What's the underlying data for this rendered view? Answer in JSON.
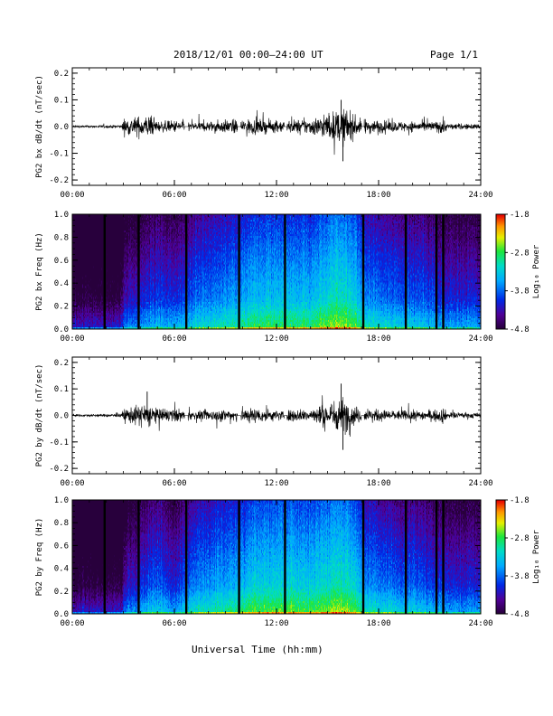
{
  "header": {
    "title": "2018/12/01  00:00–24:00 UT",
    "page": "Page 1/1"
  },
  "footer": {
    "xlabel": "Universal Time (hh:mm)"
  },
  "chart_data": [
    {
      "type": "line",
      "panel": "PG2 bx waveform",
      "ylabel": "PG2 bx dB/dt (nT/sec)",
      "xlim": [
        0,
        24
      ],
      "ylim": [
        -0.22,
        0.22
      ],
      "x_ticks": [
        "00:00",
        "06:00",
        "12:00",
        "18:00",
        "24:00"
      ],
      "y_ticks": [
        "0.2",
        "0.1",
        "0.0",
        "-0.1",
        "-0.2"
      ],
      "y_tick_values": [
        0.2,
        0.1,
        0.0,
        -0.1,
        -0.2
      ],
      "gaps_hours": [
        [
          6.6,
          6.8
        ],
        [
          9.7,
          9.9
        ],
        [
          12.45,
          12.6
        ],
        [
          17.0,
          17.15
        ]
      ],
      "envelope": {
        "hours": [
          0,
          2.9,
          3.0,
          4.5,
          5.0,
          6.6,
          7.0,
          9.0,
          10.5,
          12.0,
          14.0,
          15.5,
          16.0,
          16.5,
          17.0,
          19.0,
          21.5,
          21.8,
          22.0,
          24.0
        ],
        "amplitude": [
          0.004,
          0.006,
          0.03,
          0.045,
          0.02,
          0.025,
          0.015,
          0.025,
          0.03,
          0.022,
          0.03,
          0.06,
          0.07,
          0.045,
          0.03,
          0.02,
          0.02,
          0.04,
          0.012,
          0.01
        ]
      },
      "peaks": [
        {
          "hour": 15.8,
          "max": 0.1
        },
        {
          "hour": 15.9,
          "min": -0.13
        }
      ]
    },
    {
      "type": "heatmap",
      "panel": "PG2 bx spectrogram",
      "ylabel": "PG2 bx Freq (Hz)",
      "xlim": [
        0,
        24
      ],
      "ylim": [
        0,
        1.0
      ],
      "x_ticks": [
        "00:00",
        "06:00",
        "12:00",
        "18:00",
        "24:00"
      ],
      "y_ticks": [
        "1.0",
        "0.8",
        "0.6",
        "0.4",
        "0.2",
        "0.0"
      ],
      "y_tick_values": [
        1.0,
        0.8,
        0.6,
        0.4,
        0.2,
        0.0
      ],
      "colorbar": {
        "label": "Log₁₀ Power",
        "ticks": [
          "-1.8",
          "-2.8",
          "-3.8",
          "-4.8"
        ],
        "tick_values": [
          -1.8,
          -2.8,
          -3.8,
          -4.8
        ],
        "range": [
          -4.8,
          -1.8
        ]
      },
      "data_gap_lines_hours": [
        1.9,
        3.9,
        6.7,
        9.8,
        12.5,
        17.1,
        19.6,
        21.4,
        21.8
      ],
      "power_profile": {
        "hours": [
          0,
          2.9,
          3.0,
          5.0,
          6.0,
          7.0,
          9.0,
          10.5,
          12.0,
          14.0,
          15.5,
          16.5,
          17.2,
          19.0,
          21.0,
          22.0,
          24.0
        ],
        "log10_power": [
          -4.6,
          -4.5,
          -4.1,
          -3.7,
          -3.9,
          -3.6,
          -3.4,
          -3.2,
          -3.1,
          -3.2,
          -2.8,
          -3.0,
          -3.4,
          -3.6,
          -3.7,
          -3.9,
          -3.9
        ]
      }
    },
    {
      "type": "line",
      "panel": "PG2 by waveform",
      "ylabel": "PG2 by dB/dt (nT/sec)",
      "xlim": [
        0,
        24
      ],
      "ylim": [
        -0.22,
        0.22
      ],
      "x_ticks": [
        "00:00",
        "06:00",
        "12:00",
        "18:00",
        "24:00"
      ],
      "y_ticks": [
        "0.2",
        "0.1",
        "0.0",
        "-0.1",
        "-0.2"
      ],
      "y_tick_values": [
        0.2,
        0.1,
        0.0,
        -0.1,
        -0.2
      ],
      "gaps_hours": [
        [
          6.6,
          6.8
        ],
        [
          9.7,
          9.9
        ],
        [
          12.45,
          12.6
        ],
        [
          17.0,
          17.15
        ]
      ],
      "envelope": {
        "hours": [
          0,
          2.9,
          3.0,
          4.5,
          5.0,
          6.6,
          7.0,
          9.0,
          10.5,
          12.0,
          14.0,
          15.5,
          16.0,
          16.5,
          17.0,
          19.0,
          21.5,
          21.8,
          22.0,
          24.0
        ],
        "amplitude": [
          0.004,
          0.006,
          0.025,
          0.05,
          0.025,
          0.025,
          0.015,
          0.025,
          0.03,
          0.02,
          0.025,
          0.06,
          0.07,
          0.04,
          0.025,
          0.02,
          0.02,
          0.035,
          0.012,
          0.01
        ]
      },
      "peaks": [
        {
          "hour": 4.4,
          "max": 0.09
        },
        {
          "hour": 15.8,
          "max": 0.12
        },
        {
          "hour": 15.9,
          "min": -0.13
        }
      ]
    },
    {
      "type": "heatmap",
      "panel": "PG2 by spectrogram",
      "ylabel": "PG2 by Freq (Hz)",
      "xlim": [
        0,
        24
      ],
      "ylim": [
        0,
        1.0
      ],
      "x_ticks": [
        "00:00",
        "06:00",
        "12:00",
        "18:00",
        "24:00"
      ],
      "y_ticks": [
        "1.0",
        "0.8",
        "0.6",
        "0.4",
        "0.2",
        "0.0"
      ],
      "y_tick_values": [
        1.0,
        0.8,
        0.6,
        0.4,
        0.2,
        0.0
      ],
      "colorbar": {
        "label": "Log₁₀ Power",
        "ticks": [
          "-1.8",
          "-2.8",
          "-3.8",
          "-4.8"
        ],
        "tick_values": [
          -1.8,
          -2.8,
          -3.8,
          -4.8
        ],
        "range": [
          -4.8,
          -1.8
        ]
      },
      "data_gap_lines_hours": [
        1.9,
        3.9,
        6.7,
        9.8,
        12.5,
        17.1,
        19.6,
        21.4,
        21.8
      ],
      "power_profile": {
        "hours": [
          0,
          2.9,
          3.0,
          5.0,
          6.0,
          7.0,
          9.0,
          10.5,
          12.0,
          14.0,
          15.5,
          16.5,
          17.2,
          19.0,
          21.0,
          22.0,
          24.0
        ],
        "log10_power": [
          -4.6,
          -4.5,
          -4.1,
          -3.6,
          -3.9,
          -3.5,
          -3.3,
          -3.1,
          -3.0,
          -3.1,
          -2.8,
          -3.0,
          -3.4,
          -3.6,
          -3.7,
          -3.9,
          -3.9
        ]
      }
    }
  ]
}
